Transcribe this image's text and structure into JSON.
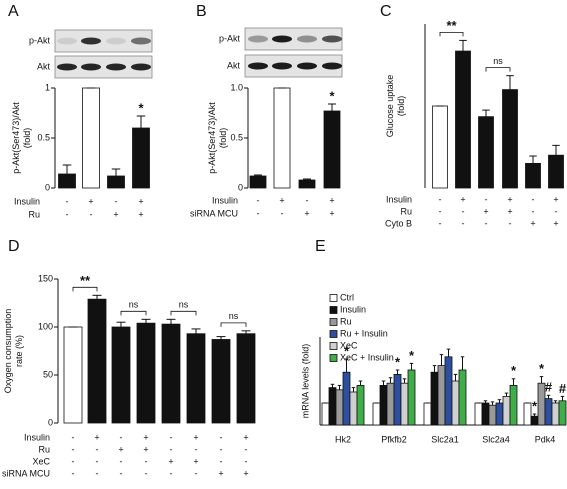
{
  "chart_data": [
    {
      "type": "bar",
      "panel_label": "A",
      "blot_labels": [
        "p-Akt",
        "Akt"
      ],
      "ylabel": [
        "p-Akt(Ser473)/Akt",
        "(fold)"
      ],
      "values": [
        0.14,
        1.0,
        0.12,
        0.6
      ],
      "errors": [
        0.09,
        0,
        0.07,
        0.12
      ],
      "colors": [
        "#111111",
        "#ffffff",
        "#111111",
        "#111111"
      ],
      "significance": [
        null,
        null,
        null,
        "*"
      ],
      "ylim": [
        0,
        1
      ],
      "yticks": [
        0,
        0.5,
        1
      ],
      "conditions": [
        {
          "name": "Insulin",
          "signs": [
            "-",
            "+",
            "-",
            "+"
          ]
        },
        {
          "name": "Ru",
          "signs": [
            "-",
            "-",
            "+",
            "+"
          ]
        }
      ]
    },
    {
      "type": "bar",
      "panel_label": "B",
      "blot_labels": [
        "p-Akt",
        "Akt"
      ],
      "ylabel": [
        "p-Akt(Ser473)/Akt",
        "(fold)"
      ],
      "values": [
        0.12,
        1.0,
        0.08,
        0.77
      ],
      "errors": [
        0.01,
        0,
        0.01,
        0.07
      ],
      "colors": [
        "#111111",
        "#ffffff",
        "#111111",
        "#111111"
      ],
      "significance": [
        null,
        null,
        null,
        "*"
      ],
      "ylim": [
        0,
        1
      ],
      "yticks": [
        0,
        0.5,
        {
          "value": 1,
          "label": "1.0"
        }
      ],
      "conditions": [
        {
          "name": "Insulin",
          "signs": [
            "-",
            "+",
            "-",
            "+"
          ]
        },
        {
          "name": "siRNA MCU",
          "signs": [
            "-",
            "-",
            "+",
            "+"
          ]
        }
      ]
    },
    {
      "type": "bar",
      "panel_label": "C",
      "ylabel": [
        "Glucose uptake",
        "(fold)"
      ],
      "values": [
        1.0,
        1.67,
        0.87,
        1.2,
        0.3,
        0.4
      ],
      "errors": [
        0,
        0.13,
        0.08,
        0.17,
        0.09,
        0.12
      ],
      "colors": [
        "#ffffff",
        "#111111",
        "#111111",
        "#111111",
        "#111111",
        "#111111"
      ],
      "comparisons": [
        {
          "label": "**",
          "pair": [
            0,
            1
          ]
        },
        {
          "label": "ns",
          "pair": [
            2,
            3
          ]
        }
      ],
      "ylim": [
        0,
        2
      ],
      "conditions": [
        {
          "name": "Insulin",
          "signs": [
            "-",
            "+",
            "-",
            "+",
            "-",
            "+"
          ]
        },
        {
          "name": "Ru",
          "signs": [
            "-",
            "-",
            "+",
            "+",
            "-",
            "-"
          ]
        },
        {
          "name": "Cyto B",
          "signs": [
            "-",
            "-",
            "-",
            "-",
            "+",
            "+"
          ]
        }
      ]
    },
    {
      "type": "bar",
      "panel_label": "D",
      "ylabel": [
        "Oxygen consumption",
        "rate (%)"
      ],
      "values": [
        100,
        129,
        100,
        104,
        103,
        93,
        87,
        93
      ],
      "errors": [
        0,
        4,
        5,
        4,
        5,
        5,
        3,
        3
      ],
      "colors": [
        "#ffffff",
        "#111111",
        "#111111",
        "#111111",
        "#111111",
        "#111111",
        "#111111",
        "#111111"
      ],
      "comparisons": [
        {
          "label": "**",
          "pair": [
            0,
            1
          ]
        },
        {
          "label": "ns",
          "pair": [
            2,
            3
          ]
        },
        {
          "label": "ns",
          "pair": [
            4,
            5
          ]
        },
        {
          "label": "ns",
          "pair": [
            6,
            7
          ]
        }
      ],
      "ylim": [
        0,
        150
      ],
      "yticks": [
        0,
        50,
        100,
        150
      ],
      "conditions": [
        {
          "name": "Insulin",
          "signs": [
            "-",
            "+",
            "-",
            "+",
            "-",
            "+",
            "-",
            "+"
          ]
        },
        {
          "name": "Ru",
          "signs": [
            "-",
            "-",
            "+",
            "+",
            "-",
            "-",
            "-",
            "-"
          ]
        },
        {
          "name": "XeC",
          "signs": [
            "-",
            "-",
            "-",
            "-",
            "+",
            "+",
            "-",
            "-"
          ]
        },
        {
          "name": "siRNA MCU",
          "signs": [
            "-",
            "-",
            "-",
            "-",
            "-",
            "-",
            "+",
            "+"
          ]
        }
      ]
    },
    {
      "type": "bar",
      "panel_label": "E",
      "ylabel": [
        "mRNA levels (fold)"
      ],
      "categories": [
        "Hk2",
        "Pfkfb2",
        "Slc2a1",
        "Slc2a4",
        "Pdk4"
      ],
      "ylim": [
        0,
        4
      ],
      "series": [
        {
          "name": "Ctrl",
          "color": "#ffffff",
          "values": [
            1,
            1,
            1,
            1,
            1
          ],
          "errors": [
            0,
            0,
            0,
            0,
            0
          ],
          "significance": [
            null,
            null,
            null,
            null,
            null
          ]
        },
        {
          "name": "Insulin",
          "color": "#111111",
          "values": [
            1.7,
            1.8,
            2.4,
            1.0,
            0.4
          ],
          "errors": [
            0.15,
            0.2,
            0.3,
            0.1,
            0.1
          ],
          "significance": [
            null,
            null,
            null,
            null,
            "*"
          ]
        },
        {
          "name": "Ru",
          "color": "#9a9a9a",
          "values": [
            1.6,
            1.9,
            2.7,
            0.9,
            1.9
          ],
          "errors": [
            0.2,
            0.25,
            0.5,
            0.15,
            0.3
          ],
          "significance": [
            null,
            null,
            null,
            null,
            "*"
          ]
        },
        {
          "name": "Ru + Insulin",
          "color": "#2e4fa0",
          "values": [
            2.4,
            2.3,
            3.1,
            1.0,
            1.2
          ],
          "errors": [
            0.6,
            0.2,
            0.35,
            0.15,
            0.15
          ],
          "significance": [
            "*",
            "*",
            null,
            null,
            "#"
          ]
        },
        {
          "name": "XeC",
          "color": "#d0d0d0",
          "values": [
            1.5,
            1.9,
            2.0,
            1.3,
            1.0
          ],
          "errors": [
            0.2,
            0.2,
            0.3,
            0.15,
            0.1
          ],
          "significance": [
            null,
            null,
            null,
            null,
            null
          ]
        },
        {
          "name": "XeC + Insulin",
          "color": "#3fae49",
          "values": [
            1.8,
            2.5,
            2.5,
            1.8,
            1.1
          ],
          "errors": [
            0.2,
            0.3,
            0.6,
            0.3,
            0.2
          ],
          "significance": [
            null,
            "*",
            null,
            "*",
            "#"
          ]
        }
      ]
    }
  ]
}
